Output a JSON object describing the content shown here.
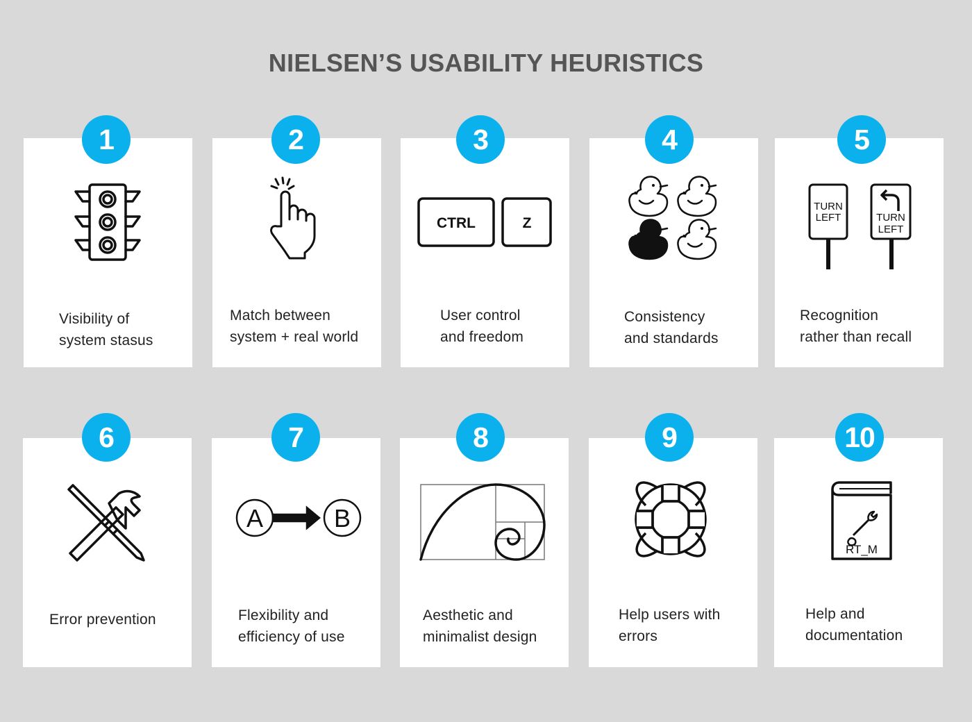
{
  "title": "NIELSEN’S USABILITY HEURISTICS",
  "accent_color": "#0ab1ec",
  "heuristics": [
    {
      "number": "1",
      "icon": "traffic-light-icon",
      "lines": [
        "Visibility of",
        "system stasus"
      ]
    },
    {
      "number": "2",
      "icon": "pointing-hand-icon",
      "lines": [
        "Match between",
        "system + real world"
      ]
    },
    {
      "number": "3",
      "icon": "ctrl-z-keys-icon",
      "keys": [
        "CTRL",
        "Z"
      ],
      "lines": [
        "User control",
        "and freedom"
      ]
    },
    {
      "number": "4",
      "icon": "rubber-ducks-icon",
      "lines": [
        "Consistency",
        "and standards"
      ]
    },
    {
      "number": "5",
      "icon": "turn-left-signs-icon",
      "signs": [
        [
          "TURN",
          "LEFT"
        ],
        [
          "TURN",
          "LEFT"
        ]
      ],
      "lines": [
        "Recognition",
        "rather than recall"
      ]
    },
    {
      "number": "6",
      "icon": "hammer-screwdriver-icon",
      "lines": [
        "Error prevention"
      ]
    },
    {
      "number": "7",
      "icon": "a-to-b-arrow-icon",
      "nodes": [
        "A",
        "B"
      ],
      "lines": [
        "Flexibility and",
        "efficiency of use"
      ]
    },
    {
      "number": "8",
      "icon": "golden-spiral-icon",
      "lines": [
        "Aesthetic and",
        "minimalist design"
      ]
    },
    {
      "number": "9",
      "icon": "life-buoy-icon",
      "lines": [
        "Help users with",
        "errors"
      ]
    },
    {
      "number": "10",
      "icon": "manual-book-icon",
      "book_text": "RT_M",
      "lines": [
        "Help and",
        "documentation"
      ]
    }
  ]
}
